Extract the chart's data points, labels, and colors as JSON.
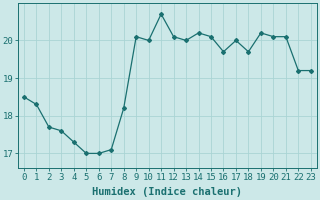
{
  "x": [
    0,
    1,
    2,
    3,
    4,
    5,
    6,
    7,
    8,
    9,
    10,
    11,
    12,
    13,
    14,
    15,
    16,
    17,
    18,
    19,
    20,
    21,
    22,
    23
  ],
  "y": [
    18.5,
    18.3,
    17.7,
    17.6,
    17.3,
    17.0,
    17.0,
    17.1,
    18.2,
    20.1,
    20.0,
    20.7,
    20.1,
    20.0,
    20.2,
    20.1,
    19.7,
    20.0,
    19.7,
    20.2,
    20.1,
    20.1,
    19.2,
    19.2
  ],
  "line_color": "#1a7070",
  "marker": "D",
  "marker_size": 2,
  "bg_color": "#cce8e8",
  "grid_color": "#aad4d4",
  "xlabel": "Humidex (Indice chaleur)",
  "ylim": [
    16.6,
    21.0
  ],
  "xlim": [
    -0.5,
    23.5
  ],
  "yticks": [
    17,
    18,
    19,
    20
  ],
  "xticks": [
    0,
    1,
    2,
    3,
    4,
    5,
    6,
    7,
    8,
    9,
    10,
    11,
    12,
    13,
    14,
    15,
    16,
    17,
    18,
    19,
    20,
    21,
    22,
    23
  ],
  "xtick_labels": [
    "0",
    "1",
    "2",
    "3",
    "4",
    "5",
    "6",
    "7",
    "8",
    "9",
    "10",
    "11",
    "12",
    "13",
    "14",
    "15",
    "16",
    "17",
    "18",
    "19",
    "20",
    "21",
    "22",
    "23"
  ],
  "tick_color": "#1a7070",
  "label_color": "#1a7070",
  "font_size": 6.5,
  "xlabel_fontsize": 7.5
}
